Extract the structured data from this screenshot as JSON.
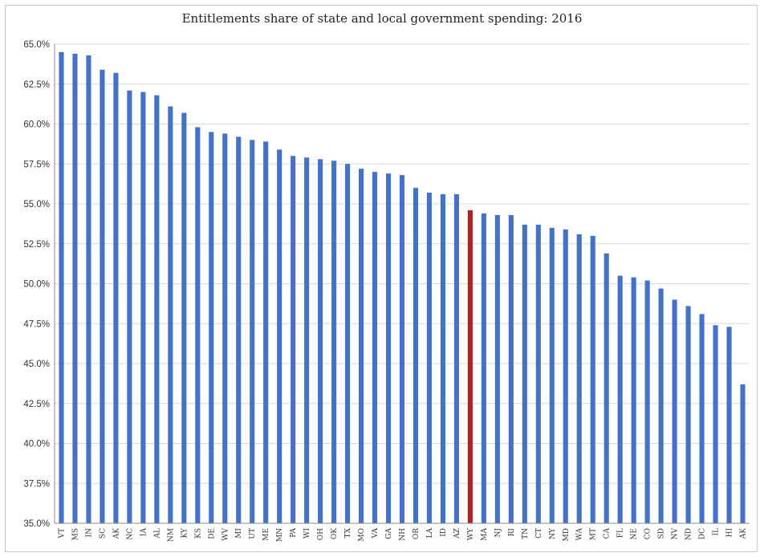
{
  "chart_data": {
    "type": "bar",
    "title": "Entitlements share of state and local government spending: 2016",
    "xlabel": "",
    "ylabel": "",
    "ylim": [
      35.0,
      65.0
    ],
    "yticks": [
      "35.0%",
      "37.5%",
      "40.0%",
      "42.5%",
      "45.0%",
      "47.5%",
      "50.0%",
      "52.5%",
      "55.0%",
      "57.5%",
      "60.0%",
      "62.5%",
      "65.0%"
    ],
    "grid": true,
    "legend": "none",
    "bar_color": "#4472c4",
    "highlight_color": "#b22222",
    "highlight_category": "WY",
    "categories": [
      "VT",
      "MS",
      "IN",
      "SC",
      "AK",
      "NC",
      "IA",
      "AL",
      "NM",
      "KY",
      "KS",
      "DE",
      "WV",
      "MI",
      "UT",
      "ME",
      "MN",
      "PA",
      "WI",
      "OH",
      "OK",
      "TX",
      "MO",
      "VA",
      "GA",
      "NH",
      "OR",
      "LA",
      "ID",
      "AZ",
      "WY",
      "MA",
      "NJ",
      "RI",
      "TN",
      "CT",
      "NY",
      "MD",
      "WA",
      "MT",
      "CA",
      "FL",
      "NE",
      "CO",
      "SD",
      "NV",
      "ND",
      "DC",
      "IL",
      "HI",
      "AK"
    ],
    "values": [
      64.5,
      64.4,
      64.3,
      63.4,
      63.2,
      62.1,
      62.0,
      61.8,
      61.1,
      60.7,
      59.8,
      59.5,
      59.4,
      59.2,
      59.0,
      58.9,
      58.4,
      58.0,
      57.9,
      57.8,
      57.7,
      57.5,
      57.2,
      57.0,
      56.9,
      56.8,
      56.0,
      55.7,
      55.6,
      55.6,
      54.6,
      54.4,
      54.3,
      54.3,
      53.7,
      53.7,
      53.5,
      53.4,
      53.1,
      53.0,
      51.9,
      50.5,
      50.4,
      50.2,
      49.7,
      49.0,
      48.6,
      48.1,
      47.4,
      47.3,
      43.7
    ]
  }
}
